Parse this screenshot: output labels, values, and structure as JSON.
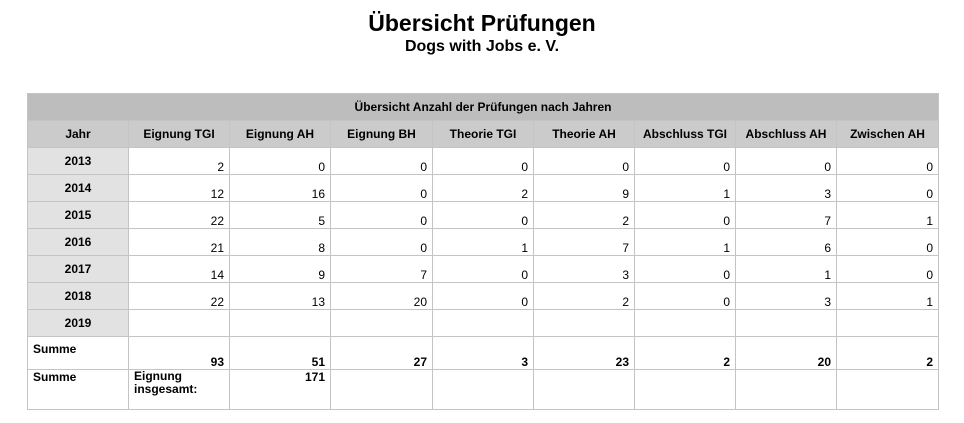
{
  "document": {
    "title": "Übersicht Prüfungen",
    "subtitle": "Dogs with Jobs e. V."
  },
  "table": {
    "caption": "Übersicht Anzahl der Prüfungen nach Jahren",
    "headers": [
      "Jahr",
      "Eignung TGI",
      "Eignung AH",
      "Eignung BH",
      "Theorie TGI",
      "Theorie AH",
      "Abschluss TGI",
      "Abschluss AH",
      "Zwischen AH"
    ],
    "rows": [
      {
        "year": "2013",
        "values": [
          "2",
          "0",
          "0",
          "0",
          "0",
          "0",
          "0",
          "0"
        ]
      },
      {
        "year": "2014",
        "values": [
          "12",
          "16",
          "0",
          "2",
          "9",
          "1",
          "3",
          "0"
        ]
      },
      {
        "year": "2015",
        "values": [
          "22",
          "5",
          "0",
          "0",
          "2",
          "0",
          "7",
          "1"
        ]
      },
      {
        "year": "2016",
        "values": [
          "21",
          "8",
          "0",
          "1",
          "7",
          "1",
          "6",
          "0"
        ]
      },
      {
        "year": "2017",
        "values": [
          "14",
          "9",
          "7",
          "0",
          "3",
          "0",
          "1",
          "0"
        ]
      },
      {
        "year": "2018",
        "values": [
          "22",
          "13",
          "20",
          "0",
          "2",
          "0",
          "3",
          "1"
        ]
      },
      {
        "year": "2019",
        "values": [
          "",
          "",
          "",
          "",
          "",
          "",
          "",
          ""
        ]
      }
    ],
    "sum_row": {
      "label": "Summe",
      "values": [
        "93",
        "51",
        "27",
        "3",
        "23",
        "2",
        "20",
        "2"
      ]
    },
    "total_row": {
      "label": "Summe",
      "description": "Eignung insgesamt:",
      "value": "171"
    }
  }
}
